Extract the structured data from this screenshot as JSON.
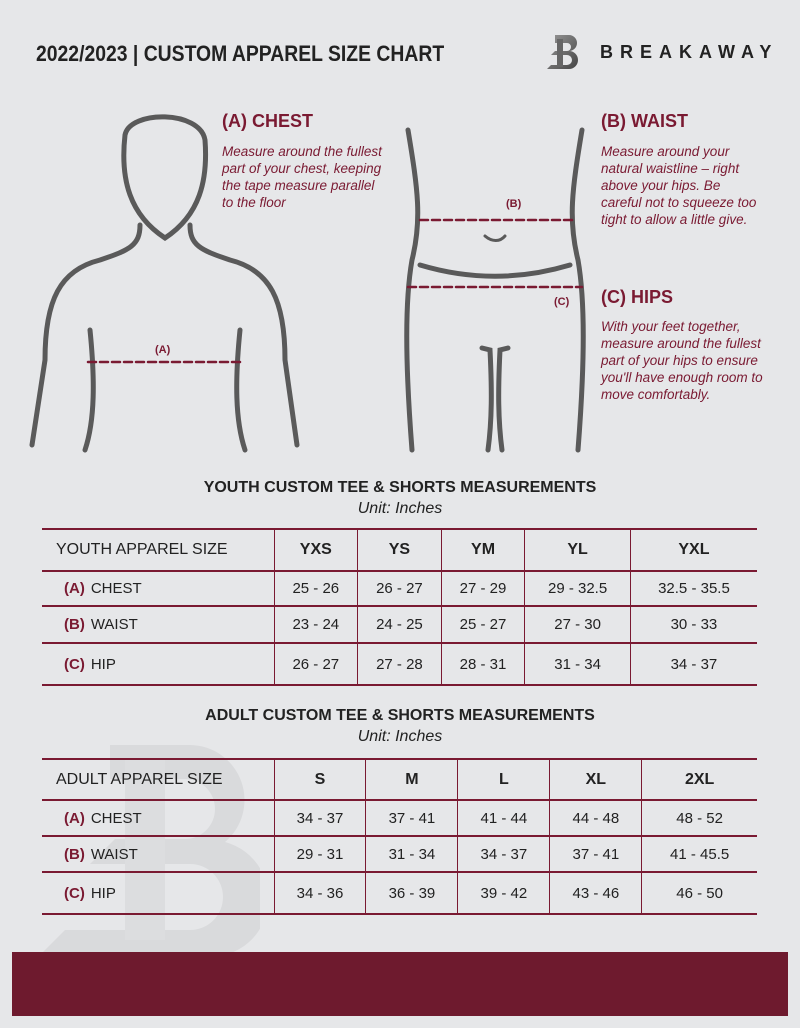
{
  "header": {
    "title": "2022/2023  |  CUSTOM APPAREL SIZE CHART",
    "brand": "BREAKAWAY",
    "logo_letter": "B"
  },
  "measure": {
    "chest": {
      "heading": "(A) CHEST",
      "text": "Measure around the fullest part of your chest, keeping the tape measure parallel to the floor",
      "marker": "(A)"
    },
    "waist": {
      "heading": "(B) WAIST",
      "text": "Measure around your natural waistline – right above your hips. Be careful not to squeeze too tight to allow a little give.",
      "marker": "(B)"
    },
    "hips": {
      "heading": "(C) HIPS",
      "text": "With your feet together, measure around the fullest part of your hips to ensure you'll have enough room to move comfortably.",
      "marker": "(C)"
    }
  },
  "colors": {
    "accent": "#7a1a32",
    "footer": "#6e1a2e",
    "background": "#e6e7e9"
  },
  "youth": {
    "title": "YOUTH CUSTOM TEE & SHORTS MEASUREMENTS",
    "unit": "Unit: Inches",
    "header": [
      "YOUTH APPAREL SIZE",
      "YXS",
      "YS",
      "YM",
      "YL",
      "YXL"
    ],
    "rows": [
      {
        "code": "(A)",
        "name": "CHEST",
        "values": [
          "25 - 26",
          "26 - 27",
          "27 - 29",
          "29 - 32.5",
          "32.5 - 35.5"
        ]
      },
      {
        "code": "(B)",
        "name": "WAIST",
        "values": [
          "23 - 24",
          "24 - 25",
          "25 - 27",
          "27 - 30",
          "30 - 33"
        ]
      },
      {
        "code": "(C)",
        "name": "HIP",
        "values": [
          "26 - 27",
          "27 - 28",
          "28 - 31",
          "31 - 34",
          "34 - 37"
        ]
      }
    ]
  },
  "adult": {
    "title": "ADULT CUSTOM TEE & SHORTS MEASUREMENTS",
    "unit": "Unit: Inches",
    "header": [
      "ADULT APPAREL SIZE",
      "S",
      "M",
      "L",
      "XL",
      "2XL"
    ],
    "rows": [
      {
        "code": "(A)",
        "name": "CHEST",
        "values": [
          "34 - 37",
          "37 - 41",
          "41 - 44",
          "44 - 48",
          "48 - 52"
        ]
      },
      {
        "code": "(B)",
        "name": "WAIST",
        "values": [
          "29 - 31",
          "31 - 34",
          "34 - 37",
          "37 - 41",
          "41 - 45.5"
        ]
      },
      {
        "code": "(C)",
        "name": "HIP",
        "values": [
          "34 - 36",
          "36 - 39",
          "39 - 42",
          "43 - 46",
          "46 - 50"
        ]
      }
    ]
  }
}
